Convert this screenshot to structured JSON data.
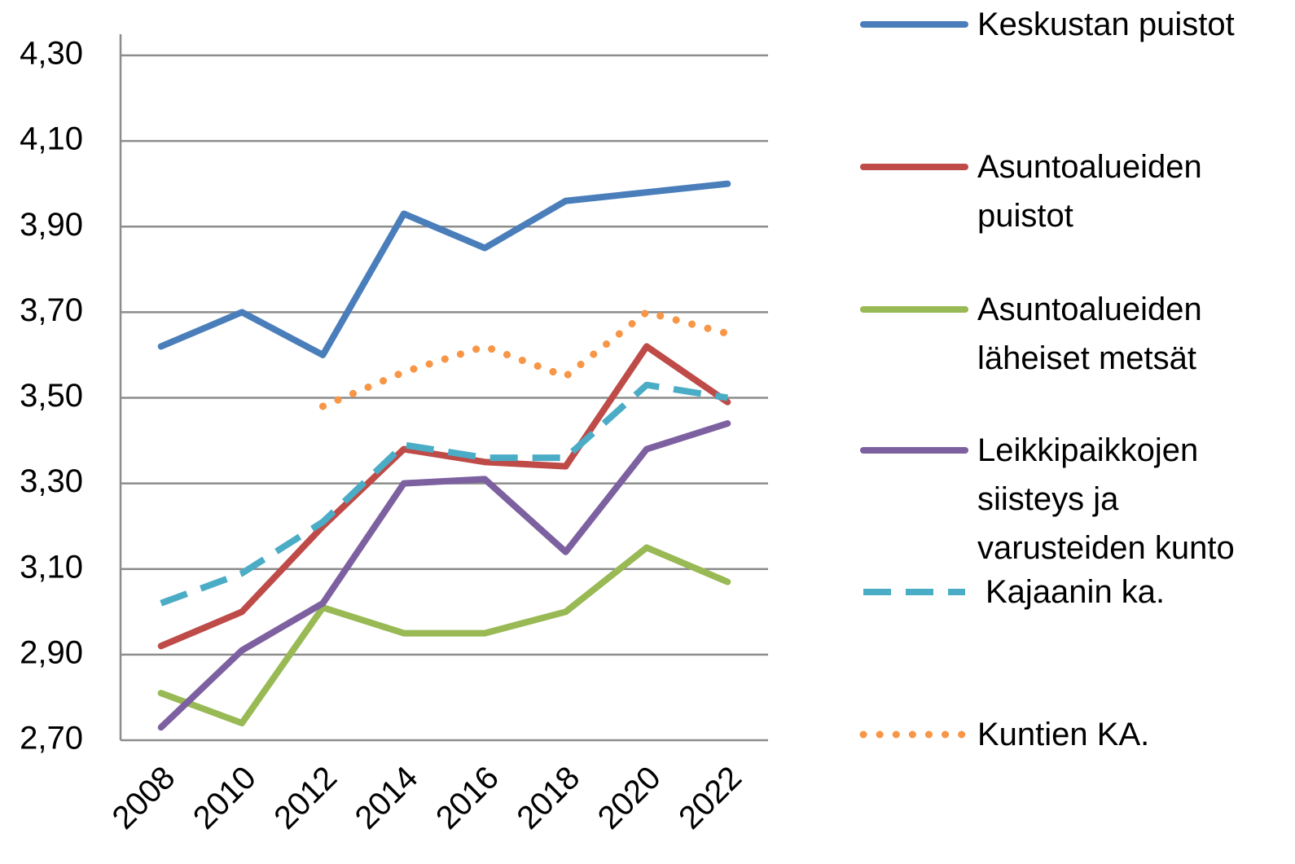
{
  "chart_data": {
    "type": "line",
    "categories": [
      "2008",
      "2010",
      "2012",
      "2014",
      "2016",
      "2018",
      "2020",
      "2022"
    ],
    "series": [
      {
        "name": "Keskustan puistot",
        "color": "#4a7ebb",
        "style": "solid",
        "values": [
          3.62,
          3.7,
          3.6,
          3.93,
          3.85,
          3.96,
          3.98,
          4.0
        ]
      },
      {
        "name": "Asuntoalueiden puistot",
        "color": "#be4b48",
        "style": "solid",
        "values": [
          2.92,
          3.0,
          3.2,
          3.38,
          3.35,
          3.34,
          3.62,
          3.49
        ]
      },
      {
        "name": "Asuntoalueiden läheiset metsät",
        "color": "#98b954",
        "style": "solid",
        "values": [
          2.81,
          2.74,
          3.01,
          2.95,
          2.95,
          3.0,
          3.15,
          3.07
        ]
      },
      {
        "name": "Leikkipaikkojen siisteys ja varusteiden kunto",
        "color": "#7d60a0",
        "style": "solid",
        "values": [
          2.73,
          2.91,
          3.02,
          3.3,
          3.31,
          3.14,
          3.38,
          3.44
        ]
      },
      {
        "name": "Kajaanin ka.",
        "color": "#4bacc6",
        "style": "dashed",
        "values": [
          3.02,
          3.09,
          3.21,
          3.39,
          3.36,
          3.36,
          3.53,
          3.5
        ]
      },
      {
        "name": "Kuntien KA.",
        "color": "#f79646",
        "style": "dotted",
        "values": [
          null,
          null,
          3.48,
          3.56,
          3.62,
          3.55,
          3.7,
          3.65
        ]
      }
    ],
    "ylim": [
      2.7,
      4.3
    ],
    "yticks": [
      {
        "value": 2.7,
        "label": "2,70"
      },
      {
        "value": 2.9,
        "label": "2,90"
      },
      {
        "value": 3.1,
        "label": "3,10"
      },
      {
        "value": 3.3,
        "label": "3,30"
      },
      {
        "value": 3.5,
        "label": "3,50"
      },
      {
        "value": 3.7,
        "label": "3,70"
      },
      {
        "value": 3.9,
        "label": "3,90"
      },
      {
        "value": 4.1,
        "label": "4,10"
      },
      {
        "value": 4.3,
        "label": "4,30"
      }
    ],
    "grid": true,
    "legend": "right"
  }
}
